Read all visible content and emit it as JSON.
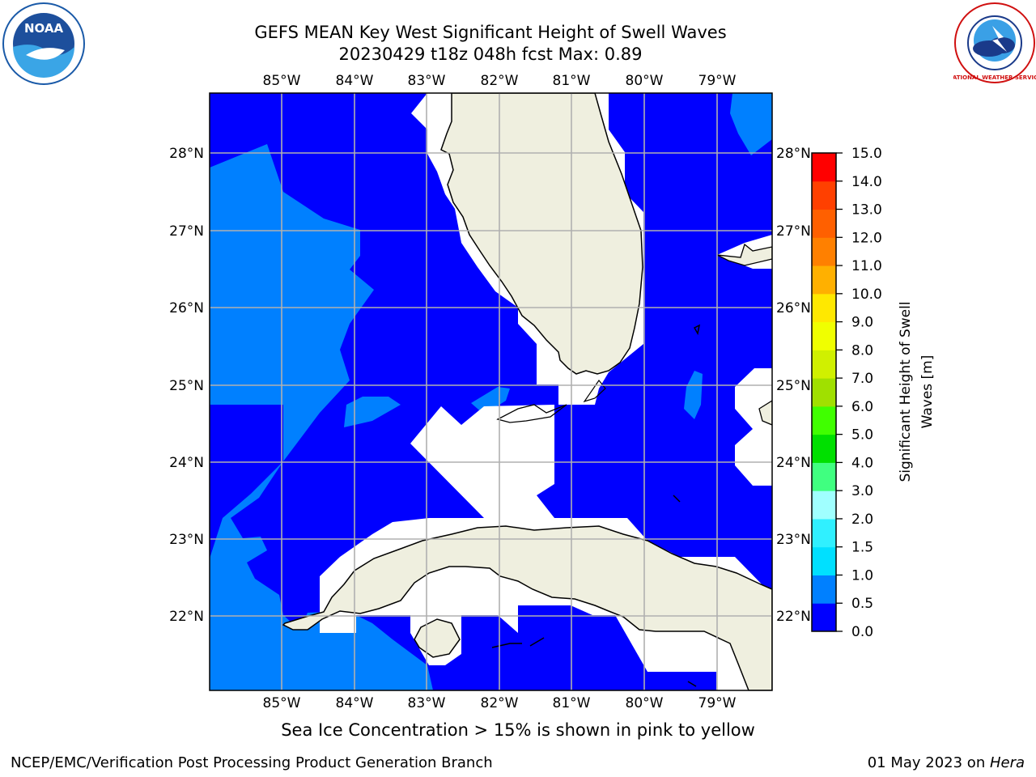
{
  "title": {
    "line1": "GEFS MEAN Key West Significant Height of Swell Waves",
    "line2": "20230429 t18z 048h fcst   Max: 0.89"
  },
  "map": {
    "lon_labels": [
      "85°W",
      "84°W",
      "83°W",
      "82°W",
      "81°W",
      "80°W",
      "79°W"
    ],
    "lat_labels": [
      "28°N",
      "27°N",
      "26°N",
      "25°N",
      "24°N",
      "23°N",
      "22°N"
    ],
    "colors": {
      "land": "#efefdf",
      "water_low": "#0000ff",
      "water_mid": "#0080ff",
      "nodata": "#ffffff",
      "grid": "#b0b0b0"
    }
  },
  "colorbar": {
    "label_line1": "Significant Height of Swell",
    "label_line2": "Waves [m]",
    "ticks": [
      "15.0",
      "14.0",
      "13.0",
      "12.0",
      "11.0",
      "10.0",
      "9.0",
      "8.0",
      "7.0",
      "6.0",
      "5.0",
      "4.0",
      "3.0",
      "2.0",
      "1.5",
      "1.0",
      "0.5",
      "0.0"
    ],
    "colors": [
      "#0000ff",
      "#0080ff",
      "#00e0ff",
      "#30f0ff",
      "#a0ffff",
      "#40ff80",
      "#00e000",
      "#40ff00",
      "#a0e000",
      "#d0f000",
      "#f0ff00",
      "#ffe800",
      "#ffb000",
      "#ff8000",
      "#ff6000",
      "#ff4000",
      "#ff0000"
    ]
  },
  "subtitle": "Sea Ice Concentration > 15% is shown in pink to yellow",
  "footer": {
    "left": "NCEP/EMC/Verification Post Processing Product Generation Branch",
    "right_prefix": "01 May 2023 on ",
    "right_machine": "Hera"
  },
  "logos": {
    "noaa_text": "NOAA",
    "nws_text": "NATIONAL WEATHER SERVICE"
  }
}
